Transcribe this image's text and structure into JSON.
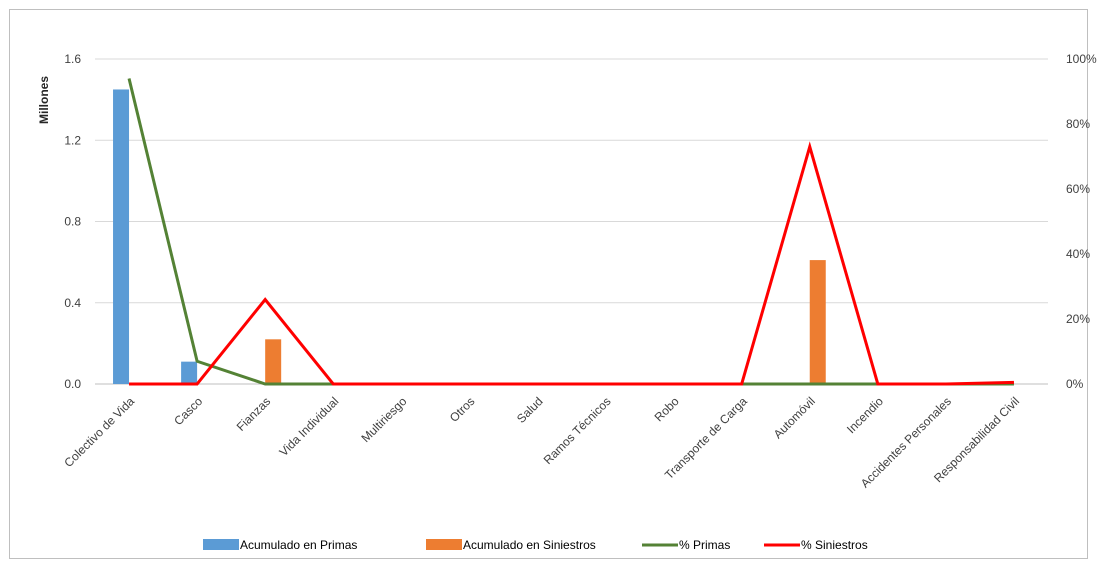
{
  "chart_data": {
    "type": "bar",
    "ylabel": "Millones",
    "categories": [
      "Colectivo de Vida",
      "Casco",
      "Fianzas",
      "Vida Individual",
      "Multiriesgo",
      "Otros",
      "Salud",
      "Ramos Técnicos",
      "Robo",
      "Transporte de Carga",
      "Automóvil",
      "Incendio",
      "Accidentes Personales",
      "Responsabilidad Civil"
    ],
    "y_left": {
      "ticks": [
        "0.0",
        "0.4",
        "0.8",
        "1.2",
        "1.6"
      ],
      "ylim": [
        0,
        1.6
      ]
    },
    "y_right": {
      "ticks": [
        "0%",
        "20%",
        "40%",
        "60%",
        "80%",
        "100%"
      ],
      "ylim": [
        0,
        1.0
      ]
    },
    "grid": true,
    "legend_position": "bottom",
    "series": [
      {
        "name": "Acumulado en Primas",
        "type": "bar",
        "axis": "left",
        "color": "#5b9bd5",
        "values": [
          1.45,
          0.11,
          0.0,
          0.0,
          0.0,
          0.0,
          0.0,
          0.0,
          0.0,
          0.0,
          0.0,
          0.0,
          0.0,
          0.0
        ]
      },
      {
        "name": "Acumulado en Siniestros",
        "type": "bar",
        "axis": "left",
        "color": "#ed7d31",
        "values": [
          0.0,
          0.0,
          0.22,
          0.0,
          0.0,
          0.0,
          0.0,
          0.0,
          0.0,
          0.0,
          0.61,
          0.0,
          0.0,
          0.0
        ]
      },
      {
        "name": "% Primas",
        "type": "line",
        "axis": "right",
        "color": "#548235",
        "values": [
          0.94,
          0.07,
          0.0,
          0.0,
          0.0,
          0.0,
          0.0,
          0.0,
          0.0,
          0.0,
          0.0,
          0.0,
          0.0,
          0.0
        ]
      },
      {
        "name": "% Siniestros",
        "type": "line",
        "axis": "right",
        "color": "#ff0000",
        "values": [
          0.0,
          0.0,
          0.26,
          0.0,
          0.0,
          0.0,
          0.0,
          0.0,
          0.0,
          0.0,
          0.73,
          0.0,
          0.0,
          0.005
        ]
      }
    ]
  }
}
